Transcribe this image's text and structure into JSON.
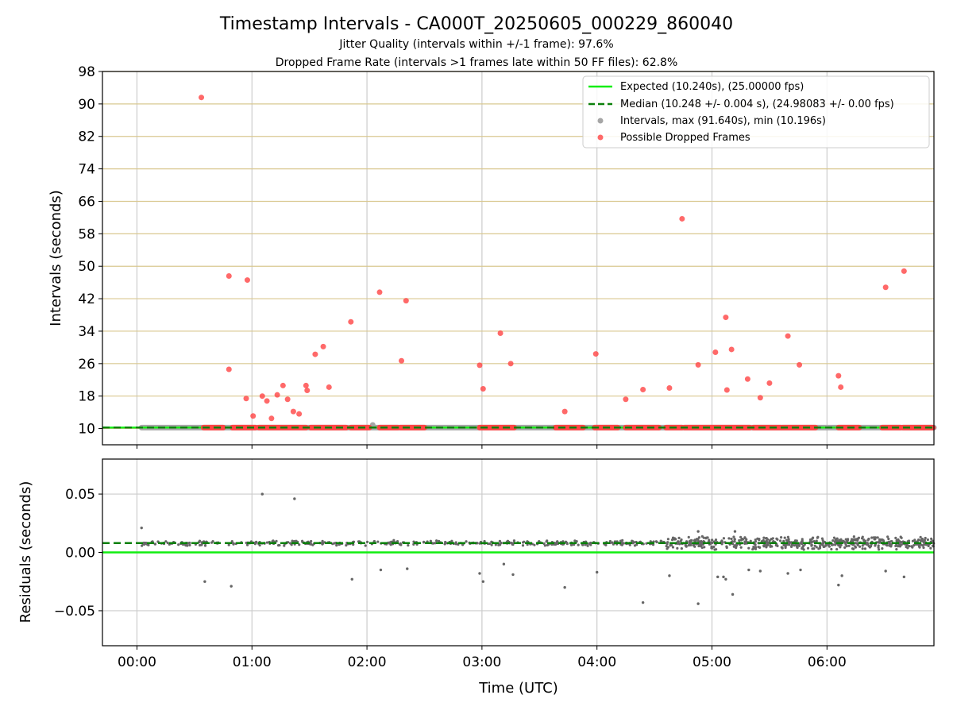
{
  "chart_data": {
    "type": "scatter",
    "title": "Timestamp Intervals - CA000T_20250605_000229_860040",
    "subtitle_1": "Jitter Quality (intervals within +/-1 frame): 97.6%",
    "subtitle_2": "Dropped Frame Rate (intervals >1 frames late within 50 FF files): 62.8%",
    "xlabel": "Time (UTC)",
    "x_unit": "hours since 00:00 UTC",
    "x_range": [
      -0.3,
      6.93
    ],
    "x_ticks": [
      {
        "v": 0,
        "label": "00:00"
      },
      {
        "v": 1,
        "label": "01:00"
      },
      {
        "v": 2,
        "label": "02:00"
      },
      {
        "v": 3,
        "label": "03:00"
      },
      {
        "v": 4,
        "label": "04:00"
      },
      {
        "v": 5,
        "label": "05:00"
      },
      {
        "v": 6,
        "label": "06:00"
      }
    ],
    "top_panel": {
      "ylabel": "Intervals (seconds)",
      "ylim": [
        6,
        98
      ],
      "yticks": [
        10,
        18,
        26,
        34,
        42,
        50,
        58,
        66,
        74,
        82,
        90,
        98
      ],
      "expected_interval": 10.24,
      "median_interval": 10.248,
      "legend_position": "upper right",
      "legend": [
        {
          "kind": "line-solid",
          "color": "#11ee11",
          "label": "Expected (10.240s), (25.00000 fps)"
        },
        {
          "kind": "line-dashed",
          "color": "#0a800a",
          "label": "Median (10.248 +/- 0.004 s), (24.98083 +/- 0.00 fps)"
        },
        {
          "kind": "marker",
          "color": "#a6a6a6",
          "label": "Intervals, max (91.640s), min (10.196s)"
        },
        {
          "kind": "marker",
          "color": "#ff4444",
          "label": "Possible Dropped Frames"
        }
      ],
      "dropped_bands_near_10s": [
        [
          0.58,
          0.75
        ],
        [
          0.83,
          1.03
        ],
        [
          1.06,
          1.47
        ],
        [
          1.51,
          1.82
        ],
        [
          1.86,
          2.02
        ],
        [
          2.11,
          2.27
        ],
        [
          2.29,
          2.5
        ],
        [
          2.98,
          3.28
        ],
        [
          3.64,
          3.88
        ],
        [
          3.98,
          4.18
        ],
        [
          4.25,
          4.54
        ],
        [
          4.6,
          4.74
        ],
        [
          4.76,
          5.33
        ],
        [
          5.36,
          5.6
        ],
        [
          5.61,
          5.9
        ],
        [
          6.1,
          6.28
        ],
        [
          6.48,
          6.64
        ],
        [
          6.66,
          6.92
        ]
      ],
      "normal_bands_near_10s": [
        [
          0.04,
          6.93
        ]
      ],
      "intervals_gray_extra": [
        {
          "x": 2.05,
          "y": 10.9
        }
      ],
      "dropped_points": [
        {
          "x": 0.56,
          "y": 91.6
        },
        {
          "x": 0.8,
          "y": 47.6
        },
        {
          "x": 0.96,
          "y": 46.6
        },
        {
          "x": 0.8,
          "y": 24.6
        },
        {
          "x": 0.95,
          "y": 17.4
        },
        {
          "x": 1.01,
          "y": 13.1
        },
        {
          "x": 1.09,
          "y": 18.0
        },
        {
          "x": 1.13,
          "y": 16.8
        },
        {
          "x": 1.17,
          "y": 12.5
        },
        {
          "x": 1.22,
          "y": 18.3
        },
        {
          "x": 1.27,
          "y": 20.6
        },
        {
          "x": 1.31,
          "y": 17.2
        },
        {
          "x": 1.36,
          "y": 14.2
        },
        {
          "x": 1.41,
          "y": 13.6
        },
        {
          "x": 1.47,
          "y": 20.6
        },
        {
          "x": 1.48,
          "y": 19.4
        },
        {
          "x": 1.55,
          "y": 28.3
        },
        {
          "x": 1.62,
          "y": 30.2
        },
        {
          "x": 1.67,
          "y": 20.2
        },
        {
          "x": 1.86,
          "y": 36.3
        },
        {
          "x": 2.11,
          "y": 43.6
        },
        {
          "x": 2.3,
          "y": 26.7
        },
        {
          "x": 2.34,
          "y": 41.5
        },
        {
          "x": 2.98,
          "y": 25.6
        },
        {
          "x": 3.01,
          "y": 19.8
        },
        {
          "x": 3.16,
          "y": 33.5
        },
        {
          "x": 3.25,
          "y": 26.0
        },
        {
          "x": 3.72,
          "y": 14.2
        },
        {
          "x": 3.99,
          "y": 28.4
        },
        {
          "x": 4.25,
          "y": 17.2
        },
        {
          "x": 4.4,
          "y": 19.6
        },
        {
          "x": 4.63,
          "y": 20.0
        },
        {
          "x": 4.74,
          "y": 61.7
        },
        {
          "x": 4.88,
          "y": 25.7
        },
        {
          "x": 5.03,
          "y": 28.8
        },
        {
          "x": 5.12,
          "y": 37.4
        },
        {
          "x": 5.13,
          "y": 19.5
        },
        {
          "x": 5.17,
          "y": 29.5
        },
        {
          "x": 5.31,
          "y": 22.2
        },
        {
          "x": 5.42,
          "y": 17.6
        },
        {
          "x": 5.5,
          "y": 21.2
        },
        {
          "x": 5.66,
          "y": 32.8
        },
        {
          "x": 5.76,
          "y": 25.7
        },
        {
          "x": 6.1,
          "y": 23.0
        },
        {
          "x": 6.12,
          "y": 20.2
        },
        {
          "x": 6.51,
          "y": 44.8
        },
        {
          "x": 6.67,
          "y": 48.8
        }
      ]
    },
    "bottom_panel": {
      "ylabel": "Residuals (seconds)",
      "ylim": [
        -0.08,
        0.08
      ],
      "yticks": [
        {
          "v": 0.05,
          "label": "0.05"
        },
        {
          "v": 0.0,
          "label": "0.00"
        },
        {
          "v": -0.05,
          "label": "−0.05"
        }
      ],
      "expected_residual": 0.0,
      "median_residual": 0.008,
      "cluster_segments": [
        {
          "x_start": 0.04,
          "x_end": 4.6,
          "center": 0.008,
          "spread": 0.0025
        },
        {
          "x_start": 4.6,
          "x_end": 6.93,
          "center": 0.008,
          "spread": 0.006
        }
      ],
      "outliers": [
        {
          "x": 0.04,
          "y": 0.021
        },
        {
          "x": 1.09,
          "y": 0.05
        },
        {
          "x": 1.37,
          "y": 0.046
        },
        {
          "x": 0.59,
          "y": -0.025
        },
        {
          "x": 0.82,
          "y": -0.029
        },
        {
          "x": 1.87,
          "y": -0.023
        },
        {
          "x": 2.12,
          "y": -0.015
        },
        {
          "x": 2.35,
          "y": -0.014
        },
        {
          "x": 2.98,
          "y": -0.018
        },
        {
          "x": 3.01,
          "y": -0.025
        },
        {
          "x": 3.19,
          "y": -0.01
        },
        {
          "x": 3.27,
          "y": -0.019
        },
        {
          "x": 3.72,
          "y": -0.03
        },
        {
          "x": 4.0,
          "y": -0.017
        },
        {
          "x": 4.4,
          "y": -0.043
        },
        {
          "x": 4.63,
          "y": -0.02
        },
        {
          "x": 4.88,
          "y": -0.044
        },
        {
          "x": 5.05,
          "y": -0.021
        },
        {
          "x": 5.12,
          "y": -0.023
        },
        {
          "x": 5.18,
          "y": -0.036
        },
        {
          "x": 5.1,
          "y": -0.021
        },
        {
          "x": 5.32,
          "y": -0.015
        },
        {
          "x": 5.42,
          "y": -0.016
        },
        {
          "x": 5.66,
          "y": -0.018
        },
        {
          "x": 5.77,
          "y": -0.015
        },
        {
          "x": 6.1,
          "y": -0.028
        },
        {
          "x": 6.13,
          "y": -0.02
        },
        {
          "x": 6.51,
          "y": -0.016
        },
        {
          "x": 6.67,
          "y": -0.021
        },
        {
          "x": 4.88,
          "y": 0.018
        },
        {
          "x": 5.2,
          "y": 0.018
        }
      ]
    },
    "colors": {
      "expected": "#11ee11",
      "median": "#0a800a",
      "intervals": "#a6a6a6",
      "dropped": "#ff4444",
      "residual_points": "#666666",
      "grid": "#cccccc",
      "hgrid_top": "#d9c890"
    }
  }
}
